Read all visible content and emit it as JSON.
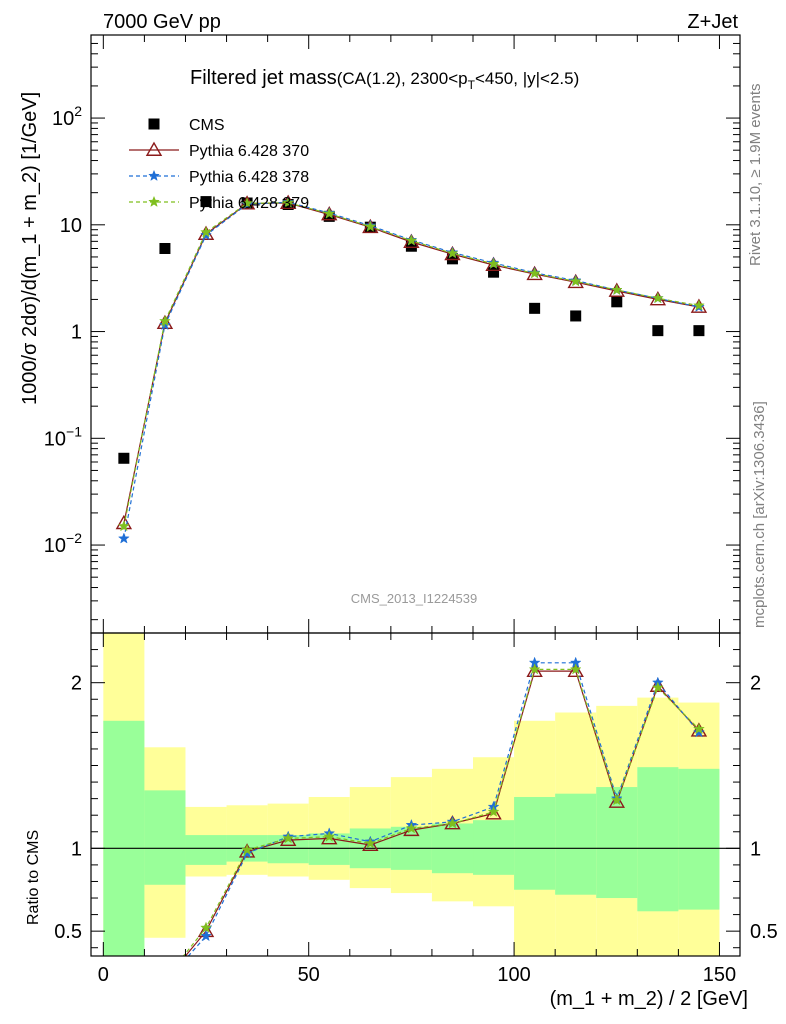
{
  "header": {
    "left": "7000 GeV pp",
    "right": "Z+Jet"
  },
  "side_labels": {
    "rivet": "Rivet 3.1.10, ≥ 1.9M events",
    "mcplots": "mcplots.cern.ch [arXiv:1306.3436]"
  },
  "chart_data": [
    {
      "type": "scatter",
      "panel": "main",
      "title": "Filtered jet mass",
      "subtitle_prefix": "(CA(1.2), 2300<p",
      "subtitle_sub": "T",
      "subtitle_suffix": "<450, |y|<2.5)",
      "ylabel": "1000/σ 2dσ)/d(m_1 + m_2) [1/GeV]",
      "xlabel": "",
      "watermark": "CMS_2013_I1224539",
      "x_range": [
        -3,
        155
      ],
      "y_scale": "log",
      "y_range": [
        0.0015,
        600
      ],
      "y_ticks": [
        {
          "v": 0.01,
          "base": "10",
          "exp": "−2"
        },
        {
          "v": 0.1,
          "base": "10",
          "exp": "−1"
        },
        {
          "v": 1,
          "base": "1",
          "exp": ""
        },
        {
          "v": 10,
          "base": "10",
          "exp": ""
        },
        {
          "v": 100,
          "base": "10",
          "exp": "2"
        }
      ],
      "x": [
        5,
        15,
        25,
        35,
        45,
        55,
        65,
        75,
        85,
        95,
        105,
        115,
        125,
        135,
        145
      ],
      "legend_position": "top-left",
      "series": [
        {
          "name": "CMS",
          "marker": "square",
          "color": "#000000",
          "values": [
            0.065,
            6.0,
            16.5,
            16.0,
            15.5,
            12.0,
            9.5,
            6.3,
            4.8,
            3.6,
            1.65,
            1.4,
            1.9,
            1.02,
            1.02
          ]
        },
        {
          "name": "Pythia 6.428 370",
          "marker": "triangle",
          "line": "solid",
          "color": "#8b1a1a",
          "values": [
            0.016,
            1.2,
            8.2,
            15.8,
            16.0,
            12.5,
            9.5,
            6.9,
            5.3,
            4.2,
            3.45,
            2.9,
            2.4,
            2.0,
            1.7
          ]
        },
        {
          "name": "Pythia 6.428 378",
          "marker": "star",
          "line": "dashed",
          "color": "#1f6fd6",
          "values": [
            0.0115,
            1.15,
            8.0,
            15.6,
            16.3,
            12.9,
            9.8,
            7.2,
            5.5,
            4.4,
            3.55,
            3.0,
            2.45,
            2.05,
            1.7
          ]
        },
        {
          "name": "Pythia 6.428 379",
          "marker": "star",
          "line": "dashed",
          "color": "#7fbf1f",
          "values": [
            0.015,
            1.25,
            8.5,
            15.9,
            16.1,
            12.7,
            9.6,
            7.1,
            5.4,
            4.3,
            3.5,
            2.95,
            2.45,
            2.05,
            1.75
          ]
        }
      ]
    },
    {
      "type": "line",
      "panel": "ratio",
      "ylabel": "Ratio to CMS",
      "xlabel": "(m_1 + m_2) / 2 [GeV]",
      "x_range": [
        -3,
        155
      ],
      "y_range": [
        0.35,
        2.3
      ],
      "x_ticks": [
        0,
        50,
        100,
        150
      ],
      "y_ticks": [
        0.5,
        1,
        2
      ],
      "reference_line": 1,
      "bands": {
        "bins": [
          [
            0,
            10
          ],
          [
            10,
            20
          ],
          [
            20,
            30
          ],
          [
            30,
            40
          ],
          [
            40,
            50
          ],
          [
            50,
            60
          ],
          [
            60,
            70
          ],
          [
            70,
            80
          ],
          [
            80,
            90
          ],
          [
            90,
            100
          ],
          [
            100,
            110
          ],
          [
            110,
            120
          ],
          [
            120,
            130
          ],
          [
            130,
            140
          ],
          [
            140,
            150
          ]
        ],
        "inner_low": [
          0.35,
          0.78,
          0.9,
          0.92,
          0.91,
          0.9,
          0.88,
          0.87,
          0.85,
          0.84,
          0.75,
          0.72,
          0.7,
          0.62,
          0.63
        ],
        "inner_high": [
          1.77,
          1.35,
          1.08,
          1.08,
          1.08,
          1.09,
          1.12,
          1.13,
          1.15,
          1.17,
          1.31,
          1.33,
          1.37,
          1.49,
          1.48
        ],
        "outer_low": [
          0.35,
          0.46,
          0.83,
          0.84,
          0.83,
          0.81,
          0.76,
          0.73,
          0.68,
          0.65,
          0.35,
          0.35,
          0.35,
          0.35,
          0.35
        ],
        "outer_high": [
          2.3,
          1.61,
          1.25,
          1.26,
          1.27,
          1.31,
          1.37,
          1.43,
          1.48,
          1.55,
          1.77,
          1.82,
          1.86,
          1.91,
          1.88
        ],
        "inner_color": "#99ff99",
        "outer_color": "#ffff99"
      },
      "x": [
        5,
        15,
        25,
        35,
        45,
        55,
        65,
        75,
        85,
        95,
        105,
        115,
        125,
        135,
        145
      ],
      "series": [
        {
          "name": "Pythia 6.428 370",
          "marker": "triangle",
          "line": "solid",
          "color": "#8b1a1a",
          "values": [
            null,
            0.2,
            0.5,
            0.98,
            1.05,
            1.06,
            1.02,
            1.11,
            1.15,
            1.21,
            2.07,
            2.07,
            1.28,
            1.98,
            1.71
          ]
        },
        {
          "name": "Pythia 6.428 378",
          "marker": "star",
          "line": "dashed",
          "color": "#1f6fd6",
          "values": [
            null,
            0.19,
            0.47,
            0.97,
            1.07,
            1.09,
            1.04,
            1.14,
            1.16,
            1.25,
            2.12,
            2.12,
            1.3,
            2.0,
            1.7
          ]
        },
        {
          "name": "Pythia 6.428 379",
          "marker": "star",
          "line": "dashed",
          "color": "#7fbf1f",
          "values": [
            null,
            0.21,
            0.52,
            0.99,
            1.06,
            1.07,
            1.03,
            1.12,
            1.15,
            1.22,
            2.08,
            2.08,
            1.29,
            1.97,
            1.72
          ]
        }
      ]
    }
  ]
}
